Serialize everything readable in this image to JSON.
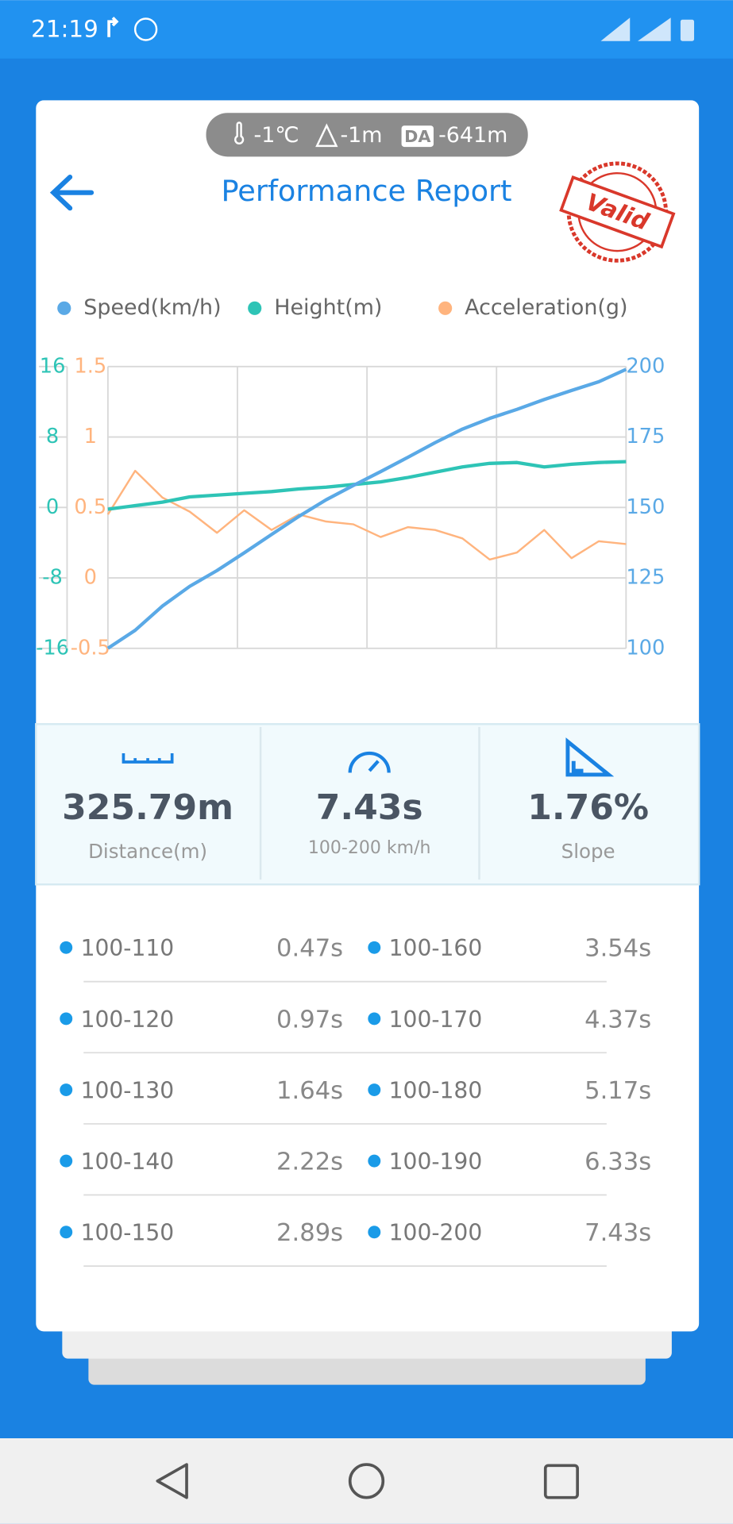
{
  "status_bar": {
    "time": "21:19"
  },
  "header": {
    "conditions": [
      "-1℃",
      "-1m",
      "-641m"
    ],
    "da_badge": "DA",
    "title": "Performance Report",
    "stamp": "Valid"
  },
  "chart_data": {
    "type": "line",
    "grid": true,
    "series": [
      {
        "name": "Speed(km/h)",
        "color": "#5aa9e6",
        "axis": "y2",
        "values": [
          100,
          106.4,
          115,
          122,
          127.6,
          133.9,
          140.4,
          146.8,
          152.7,
          157.8,
          162.7,
          167.8,
          173,
          177.8,
          181.6,
          184.8,
          188.3,
          191.5,
          194.6,
          199
        ]
      },
      {
        "name": "Height(m)",
        "color": "#2ec4b6",
        "axis": "y",
        "values": [
          -0.2,
          0.2,
          0.6,
          1.2,
          1.4,
          1.6,
          1.8,
          2.1,
          2.3,
          2.6,
          2.9,
          3.4,
          4.0,
          4.6,
          5.0,
          5.1,
          4.6,
          4.9,
          5.1,
          5.2
        ]
      },
      {
        "name": "Acceleration(g)",
        "color": "#ffb47e",
        "axis": "y3",
        "values": [
          0.45,
          0.76,
          0.57,
          0.47,
          0.32,
          0.48,
          0.34,
          0.45,
          0.4,
          0.38,
          0.29,
          0.36,
          0.34,
          0.28,
          0.13,
          0.18,
          0.34,
          0.14,
          0.26,
          0.24
        ]
      }
    ],
    "ylim": [
      -16,
      16
    ],
    "yticks": [
      -16,
      -8,
      0,
      8,
      16
    ],
    "y3lim": [
      -0.5,
      1.5
    ],
    "y3ticks": [
      -0.5,
      0,
      0.5,
      1,
      1.5
    ],
    "y2lim": [
      100,
      200
    ],
    "y2ticks": [
      100,
      125,
      150,
      175,
      200
    ]
  },
  "stats": [
    {
      "value": "325.79m",
      "label": "Distance(m)"
    },
    {
      "value": "7.43s",
      "label": "100-200 km/h"
    },
    {
      "value": "1.76%",
      "label": "Slope"
    }
  ],
  "splits": [
    {
      "range": "100-110",
      "time": "0.47s"
    },
    {
      "range": "100-160",
      "time": "3.54s"
    },
    {
      "range": "100-120",
      "time": "0.97s"
    },
    {
      "range": "100-170",
      "time": "4.37s"
    },
    {
      "range": "100-130",
      "time": "1.64s"
    },
    {
      "range": "100-180",
      "time": "5.17s"
    },
    {
      "range": "100-140",
      "time": "2.22s"
    },
    {
      "range": "100-190",
      "time": "6.33s"
    },
    {
      "range": "100-150",
      "time": "2.89s"
    },
    {
      "range": "100-200",
      "time": "7.43s"
    }
  ]
}
